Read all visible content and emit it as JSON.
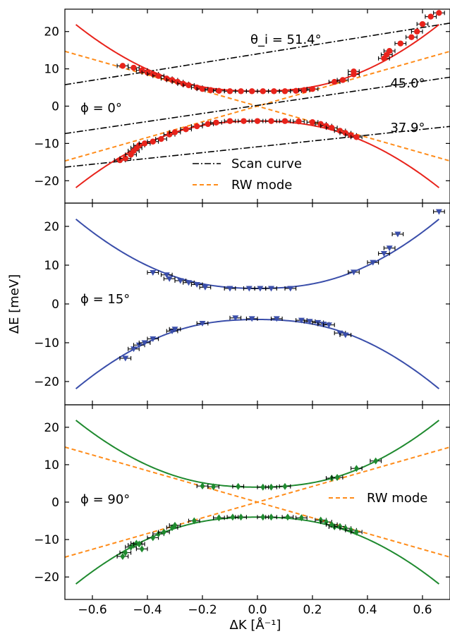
{
  "chart_data": [
    {
      "type": "scatter",
      "panel_label": "ϕ = 0°",
      "xlabel": "ΔK [Å⁻¹]",
      "ylabel": "ΔE [meV]",
      "xlim": [
        -0.7,
        0.7
      ],
      "ylim": [
        -26,
        26
      ],
      "x_ticks": [
        -0.6,
        -0.4,
        -0.2,
        0.0,
        0.2,
        0.4,
        0.6
      ],
      "x_tick_labels": [
        "−0.6",
        "−0.4",
        "−0.2",
        "0.0",
        "0.2",
        "0.4",
        "0.6"
      ],
      "y_ticks": [
        -20,
        -10,
        0,
        10,
        20
      ],
      "y_tick_labels": [
        "−20",
        "−10",
        "0",
        "10",
        "20"
      ],
      "color": "#e8231b",
      "marker": "circle",
      "dispersion_fit": {
        "gap": 4,
        "a": 190,
        "b": 2000
      },
      "upper_branch_points": [
        [
          -0.49,
          10.8
        ],
        [
          -0.45,
          10.3
        ],
        [
          -0.42,
          9.6
        ],
        [
          -0.4,
          9.0
        ],
        [
          -0.38,
          8.6
        ],
        [
          -0.36,
          8.1
        ],
        [
          -0.33,
          7.4
        ],
        [
          -0.31,
          7.0
        ],
        [
          -0.29,
          6.5
        ],
        [
          -0.27,
          6.0
        ],
        [
          -0.25,
          5.6
        ],
        [
          -0.22,
          5.0
        ],
        [
          -0.2,
          4.6
        ],
        [
          -0.17,
          4.3
        ],
        [
          -0.14,
          4.1
        ],
        [
          -0.1,
          4.0
        ],
        [
          -0.06,
          4.0
        ],
        [
          -0.02,
          4.0
        ],
        [
          0.02,
          4.0
        ],
        [
          0.06,
          4.0
        ],
        [
          0.1,
          4.0
        ],
        [
          0.14,
          4.1
        ],
        [
          0.17,
          4.3
        ],
        [
          0.2,
          4.6
        ],
        [
          0.28,
          6.5
        ],
        [
          0.31,
          7.0
        ],
        [
          0.35,
          8.5
        ],
        [
          0.35,
          9.3
        ],
        [
          0.46,
          12.8
        ],
        [
          0.47,
          13.8
        ],
        [
          0.48,
          14.8
        ],
        [
          0.52,
          16.8
        ],
        [
          0.56,
          18.5
        ],
        [
          0.58,
          20.0
        ],
        [
          0.6,
          22.0
        ],
        [
          0.63,
          24.0
        ],
        [
          0.66,
          25.0
        ]
      ],
      "lower_branch_points": [
        [
          -0.5,
          -14.5
        ],
        [
          -0.48,
          -14.0
        ],
        [
          -0.46,
          -13.0
        ],
        [
          -0.45,
          -12.0
        ],
        [
          -0.44,
          -11.2
        ],
        [
          -0.43,
          -10.5
        ],
        [
          -0.41,
          -10.0
        ],
        [
          -0.38,
          -9.5
        ],
        [
          -0.35,
          -8.8
        ],
        [
          -0.32,
          -7.6
        ],
        [
          -0.3,
          -7.0
        ],
        [
          -0.26,
          -6.2
        ],
        [
          -0.22,
          -5.4
        ],
        [
          -0.18,
          -4.8
        ],
        [
          -0.15,
          -4.4
        ],
        [
          -0.1,
          -4.0
        ],
        [
          -0.05,
          -4.0
        ],
        [
          0.0,
          -4.0
        ],
        [
          0.05,
          -4.0
        ],
        [
          0.1,
          -4.0
        ],
        [
          0.15,
          -4.1
        ],
        [
          0.2,
          -4.3
        ],
        [
          0.23,
          -4.8
        ],
        [
          0.25,
          -5.3
        ],
        [
          0.27,
          -5.8
        ],
        [
          0.3,
          -6.6
        ],
        [
          0.32,
          -7.2
        ],
        [
          0.34,
          -7.8
        ],
        [
          0.36,
          -8.3
        ]
      ],
      "scan_curves": [
        {
          "label": "θ_i = 51.4°",
          "slope": 11.8,
          "intercept": 14.0
        },
        {
          "label": "45.0°",
          "slope": 10.8,
          "intercept": 0.2
        },
        {
          "label": "37.9°",
          "slope": 7.8,
          "intercept": -10.9
        }
      ],
      "rw_mode": {
        "slope": 21,
        "intercept": 0
      },
      "legend": {
        "entries": [
          "Scan curve",
          "RW mode"
        ],
        "placement": "lower-center"
      }
    },
    {
      "type": "scatter",
      "panel_label": "ϕ = 15°",
      "xlim": [
        -0.7,
        0.7
      ],
      "ylim": [
        -26,
        26
      ],
      "y_ticks": [
        -20,
        -10,
        0,
        10,
        20
      ],
      "y_tick_labels": [
        "−20",
        "−10",
        "0",
        "10",
        "20"
      ],
      "color": "#3a4eaa",
      "marker": "triangle-down",
      "dispersion_fit": {
        "gap": 4,
        "a": 190,
        "b": 2000
      },
      "upper_branch_points": [
        [
          -0.38,
          8.1
        ],
        [
          -0.33,
          7.5
        ],
        [
          -0.32,
          6.5
        ],
        [
          -0.28,
          6.0
        ],
        [
          -0.25,
          5.5
        ],
        [
          -0.22,
          5.0
        ],
        [
          -0.19,
          4.3
        ],
        [
          -0.1,
          4.0
        ],
        [
          -0.03,
          4.0
        ],
        [
          0.01,
          4.0
        ],
        [
          0.05,
          4.0
        ],
        [
          0.12,
          4.0
        ],
        [
          0.35,
          8.2
        ],
        [
          0.42,
          10.7
        ],
        [
          0.46,
          13.0
        ],
        [
          0.48,
          14.4
        ],
        [
          0.51,
          18.0
        ],
        [
          0.66,
          23.8
        ]
      ],
      "lower_branch_points": [
        [
          -0.48,
          -14.0
        ],
        [
          -0.45,
          -11.6
        ],
        [
          -0.43,
          -10.6
        ],
        [
          -0.41,
          -10.0
        ],
        [
          -0.38,
          -9.0
        ],
        [
          -0.31,
          -7.0
        ],
        [
          -0.3,
          -6.5
        ],
        [
          -0.2,
          -5.0
        ],
        [
          -0.08,
          -3.6
        ],
        [
          -0.02,
          -3.8
        ],
        [
          0.07,
          -3.8
        ],
        [
          0.16,
          -4.2
        ],
        [
          0.19,
          -4.5
        ],
        [
          0.22,
          -4.8
        ],
        [
          0.24,
          -5.2
        ],
        [
          0.26,
          -5.4
        ],
        [
          0.3,
          -7.5
        ],
        [
          0.32,
          -8.0
        ]
      ]
    },
    {
      "type": "scatter",
      "panel_label": "ϕ = 90°",
      "xlim": [
        -0.7,
        0.7
      ],
      "ylim": [
        -26,
        26
      ],
      "y_ticks": [
        -20,
        -10,
        0,
        10,
        20
      ],
      "y_tick_labels": [
        "−20",
        "−10",
        "0",
        "10",
        "20"
      ],
      "color": "#1f8a2f",
      "marker": "diamond",
      "dispersion_fit": {
        "gap": 4,
        "a": 190,
        "b": 2000
      },
      "upper_branch_points": [
        [
          -0.2,
          4.3
        ],
        [
          -0.16,
          4.1
        ],
        [
          -0.07,
          4.2
        ],
        [
          0.02,
          4.0
        ],
        [
          0.05,
          4.0
        ],
        [
          0.1,
          4.2
        ],
        [
          0.27,
          6.4
        ],
        [
          0.29,
          6.6
        ],
        [
          0.36,
          9.0
        ],
        [
          0.43,
          11.0
        ]
      ],
      "lower_branch_points": [
        [
          -0.49,
          -14.5
        ],
        [
          -0.48,
          -13.5
        ],
        [
          -0.46,
          -12.0
        ],
        [
          -0.45,
          -11.5
        ],
        [
          -0.44,
          -11.0
        ],
        [
          -0.43,
          -11.2
        ],
        [
          -0.42,
          -12.5
        ],
        [
          -0.38,
          -9.5
        ],
        [
          -0.36,
          -8.5
        ],
        [
          -0.34,
          -8.0
        ],
        [
          -0.31,
          -6.8
        ],
        [
          -0.3,
          -6.2
        ],
        [
          -0.23,
          -5.0
        ],
        [
          -0.14,
          -4.2
        ],
        [
          -0.09,
          -4.0
        ],
        [
          -0.06,
          -4.0
        ],
        [
          0.02,
          -4.0
        ],
        [
          0.05,
          -4.0
        ],
        [
          0.11,
          -4.0
        ],
        [
          0.16,
          -4.2
        ],
        [
          0.23,
          -4.8
        ],
        [
          0.25,
          -5.3
        ],
        [
          0.27,
          -6.0
        ],
        [
          0.28,
          -6.6
        ],
        [
          0.3,
          -6.5
        ],
        [
          0.32,
          -7.0
        ],
        [
          0.34,
          -7.5
        ],
        [
          0.36,
          -8.0
        ]
      ],
      "rw_mode": {
        "slope": 21,
        "intercept": 0
      },
      "legend": {
        "entries": [
          "RW mode"
        ],
        "placement": "center-right"
      }
    }
  ]
}
